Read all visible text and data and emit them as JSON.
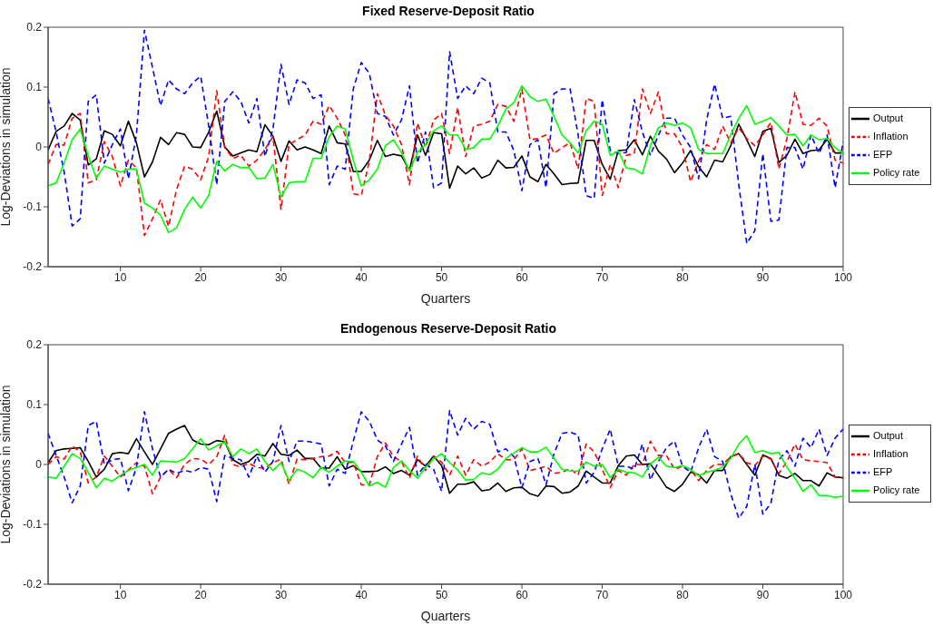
{
  "chart_data": [
    {
      "type": "line",
      "title": "Fixed Reserve-Deposit Ratio",
      "xlabel": "Quarters",
      "ylabel": "Log-Deviations in simulation",
      "x": [
        1,
        2,
        3,
        4,
        5,
        6,
        7,
        8,
        9,
        10,
        11,
        12,
        13,
        14,
        15,
        16,
        17,
        18,
        19,
        20,
        21,
        22,
        23,
        24,
        25,
        26,
        27,
        28,
        29,
        30,
        31,
        32,
        33,
        34,
        35,
        36,
        37,
        38,
        39,
        40,
        41,
        42,
        43,
        44,
        45,
        46,
        47,
        48,
        49,
        50,
        51,
        52,
        53,
        54,
        55,
        56,
        57,
        58,
        59,
        60,
        61,
        62,
        63,
        64,
        65,
        66,
        67,
        68,
        69,
        70,
        71,
        72,
        73,
        74,
        75,
        76,
        77,
        78,
        79,
        80,
        81,
        82,
        83,
        84,
        85,
        86,
        87,
        88,
        89,
        90,
        91,
        92,
        93,
        94,
        95,
        96,
        97,
        98,
        99,
        100
      ],
      "xlim": [
        1,
        100
      ],
      "xticks": [
        10,
        20,
        30,
        40,
        50,
        60,
        70,
        80,
        90,
        100
      ],
      "ylim": [
        -0.2,
        0.2
      ],
      "yticks": [
        -0.2,
        -0.1,
        0,
        0.1,
        0.2
      ],
      "legend": "right",
      "series": [
        {
          "name": "Output",
          "color": "#000000",
          "line_style": "solid",
          "values": [
            -0.005,
            0.026,
            0.035,
            0.056,
            0.045,
            -0.03,
            -0.02,
            0.027,
            0.021,
            0.002,
            0.043,
            0.007,
            -0.05,
            -0.025,
            0.016,
            0.004,
            0.024,
            0.021,
            0,
            -0.001,
            0.025,
            0.06,
            0,
            -0.015,
            -0.01,
            -0.005,
            -0.008,
            0.037,
            0.018,
            -0.024,
            0.01,
            -0.005,
            0,
            -0.005,
            -0.011,
            0.035,
            0.007,
            0.005,
            -0.041,
            -0.041,
            -0.022,
            0.011,
            -0.016,
            -0.012,
            -0.015,
            -0.039,
            0.02,
            -0.014,
            0.024,
            0.022,
            -0.069,
            -0.032,
            -0.045,
            -0.035,
            -0.052,
            -0.046,
            -0.022,
            -0.035,
            -0.034,
            -0.015,
            -0.05,
            -0.058,
            -0.029,
            -0.045,
            -0.063,
            -0.061,
            -0.06,
            0.011,
            0.011,
            -0.029,
            -0.054,
            -0.006,
            -0.005,
            0.012,
            -0.013,
            0.018,
            -0.007,
            -0.02,
            -0.043,
            -0.027,
            -0.006,
            -0.033,
            -0.05,
            -0.022,
            -0.025,
            0.002,
            0.038,
            0.012,
            -0.016,
            0.026,
            0.031,
            -0.026,
            -0.014,
            0.013,
            -0.011,
            -0.006,
            -0.005,
            0.013,
            -0.01,
            -0.01
          ]
        },
        {
          "name": "Inflation",
          "color": "#ff0000",
          "line_style": "dashed",
          "values": [
            -0.029,
            0.004,
            0.003,
            0.048,
            0.056,
            -0.06,
            -0.055,
            0.009,
            -0.016,
            -0.065,
            -0.022,
            -0.035,
            -0.148,
            -0.12,
            -0.088,
            -0.133,
            -0.071,
            -0.032,
            -0.037,
            -0.055,
            -0.016,
            0.094,
            -0.001,
            -0.019,
            -0.014,
            -0.032,
            -0.022,
            -0.004,
            0.017,
            -0.104,
            0.004,
            0.012,
            0.02,
            0.043,
            0.038,
            0.069,
            0.048,
            0.02,
            -0.078,
            -0.081,
            -0.024,
            0.089,
            0.053,
            0.035,
            0.004,
            -0.063,
            0.04,
            -0.001,
            0.045,
            0.056,
            -0.011,
            0.066,
            -0.016,
            0.035,
            0.038,
            0.043,
            0.071,
            0.068,
            0.043,
            0.097,
            0.012,
            0.014,
            0.02,
            -0.011,
            -0.001,
            0.007,
            -0.037,
            0.081,
            0.076,
            -0.081,
            -0.029,
            -0.068,
            -0.014,
            -0.011,
            0.097,
            0.056,
            0.092,
            0.022,
            0.022,
            -0.001,
            -0.058,
            -0.024,
            0.004,
            -0.004,
            0.035,
            0.007,
            0.032,
            0.014,
            0.002,
            0.02,
            0.041,
            -0.037,
            0.014,
            0.092,
            0.038,
            0.036,
            0.048,
            0.035,
            -0.022,
            -0.027
          ]
        },
        {
          "name": "EFP",
          "color": "#0000ff",
          "line_style": "dashed",
          "values": [
            0.081,
            0.025,
            -0.042,
            -0.132,
            -0.12,
            0.076,
            0.087,
            -0.027,
            0.004,
            0.03,
            -0.053,
            0.02,
            0.195,
            0.133,
            0.069,
            0.112,
            0.097,
            0.089,
            0.107,
            0.118,
            0.035,
            -0.063,
            0.076,
            0.092,
            0.076,
            0.04,
            0.081,
            -0.016,
            0.03,
            0.138,
            0.071,
            0.112,
            0.107,
            0.081,
            0.087,
            -0.063,
            -0.032,
            -0.037,
            0.097,
            0.141,
            0.123,
            0.056,
            0.051,
            0.02,
            0.045,
            0.102,
            -0.027,
            0.025,
            -0.068,
            -0.06,
            0.159,
            0.081,
            0.102,
            0.089,
            0.115,
            0.107,
            0.025,
            0.025,
            -0.006,
            -0.073,
            0.004,
            0.012,
            -0.068,
            0.089,
            0.097,
            0.097,
            0.02,
            -0.081,
            -0.086,
            0.079,
            -0.006,
            -0.011,
            -0.009,
            0.079,
            0.025,
            -0.014,
            0.02,
            0.048,
            0.048,
            0.02,
            -0.001,
            -0.053,
            0.045,
            0.105,
            0.048,
            0.051,
            -0.063,
            -0.161,
            -0.14,
            -0.011,
            -0.124,
            -0.122,
            -0.001,
            -0.001,
            -0.037,
            0.02,
            -0.011,
            0.02,
            -0.068,
            0.009
          ]
        },
        {
          "name": "Policy rate",
          "color": "#00ff00",
          "line_style": "solid",
          "values": [
            -0.065,
            -0.06,
            -0.027,
            0.012,
            0.03,
            -0.014,
            -0.052,
            -0.032,
            -0.037,
            -0.042,
            -0.037,
            -0.037,
            -0.094,
            -0.102,
            -0.114,
            -0.143,
            -0.135,
            -0.104,
            -0.084,
            -0.102,
            -0.081,
            -0.024,
            -0.04,
            -0.029,
            -0.035,
            -0.034,
            -0.053,
            -0.052,
            -0.029,
            -0.084,
            -0.06,
            -0.058,
            -0.058,
            -0.019,
            -0.019,
            0.017,
            0.035,
            0.03,
            -0.022,
            -0.065,
            -0.055,
            -0.037,
            0.002,
            0.012,
            -0.009,
            -0.04,
            -0.009,
            0.004,
            0.027,
            0.035,
            0.02,
            0.02,
            -0.004,
            -0.001,
            0.013,
            0.013,
            0.035,
            0.063,
            0.074,
            0.102,
            0.084,
            0.076,
            0.08,
            0.051,
            0.02,
            0.007,
            -0.01,
            0.027,
            0.043,
            0.038,
            -0.014,
            -0.007,
            -0.035,
            -0.037,
            -0.045,
            0.002,
            0.032,
            0.04,
            0.036,
            0.04,
            0.032,
            -0.004,
            -0.011,
            -0.011,
            -0.011,
            0.02,
            0.048,
            0.069,
            0.038,
            0.043,
            0.049,
            0.035,
            0.02,
            0.021,
            0.002,
            0.02,
            0.012,
            0.014,
            -0.001,
            -0.011
          ]
        }
      ]
    },
    {
      "type": "line",
      "title": "Endogenous Reserve-Deposit Ratio",
      "xlabel": "Quarters",
      "ylabel": "Log-Deviations in simulation",
      "x": [
        1,
        2,
        3,
        4,
        5,
        6,
        7,
        8,
        9,
        10,
        11,
        12,
        13,
        14,
        15,
        16,
        17,
        18,
        19,
        20,
        21,
        22,
        23,
        24,
        25,
        26,
        27,
        28,
        29,
        30,
        31,
        32,
        33,
        34,
        35,
        36,
        37,
        38,
        39,
        40,
        41,
        42,
        43,
        44,
        45,
        46,
        47,
        48,
        49,
        50,
        51,
        52,
        53,
        54,
        55,
        56,
        57,
        58,
        59,
        60,
        61,
        62,
        63,
        64,
        65,
        66,
        67,
        68,
        69,
        70,
        71,
        72,
        73,
        74,
        75,
        76,
        77,
        78,
        79,
        80,
        81,
        82,
        83,
        84,
        85,
        86,
        87,
        88,
        89,
        90,
        91,
        92,
        93,
        94,
        95,
        96,
        97,
        98,
        99,
        100
      ],
      "xlim": [
        1,
        100
      ],
      "xticks": [
        10,
        20,
        30,
        40,
        50,
        60,
        70,
        80,
        90,
        100
      ],
      "ylim": [
        -0.2,
        0.2
      ],
      "yticks": [
        -0.2,
        -0.1,
        0,
        0.1,
        0.2
      ],
      "legend": "right",
      "series": [
        {
          "name": "Output",
          "color": "#000000",
          "line_style": "solid",
          "values": [
            0.003,
            0.023,
            0.026,
            0.027,
            0.028,
            0.005,
            -0.021,
            -0.008,
            0.018,
            0.02,
            0.018,
            0.043,
            0.021,
            0,
            0.026,
            0.052,
            0.059,
            0.065,
            0.041,
            0.034,
            0.033,
            0.04,
            0.038,
            0.008,
            0,
            0.005,
            0.017,
            0.014,
            0.035,
            0.017,
            0.015,
            0.024,
            0.01,
            0.01,
            -0.006,
            -0.006,
            0.013,
            -0.008,
            -0.002,
            -0.012,
            -0.012,
            -0.011,
            -0.004,
            -0.015,
            -0.01,
            -0.018,
            0.008,
            -0.003,
            0.014,
            -0.002,
            -0.048,
            -0.033,
            -0.033,
            -0.029,
            -0.044,
            -0.042,
            -0.031,
            -0.045,
            -0.039,
            -0.038,
            -0.049,
            -0.053,
            -0.036,
            -0.037,
            -0.048,
            -0.046,
            -0.036,
            -0.011,
            -0.021,
            -0.031,
            -0.031,
            -0.002,
            0.014,
            0.016,
            0,
            0.001,
            -0.018,
            -0.038,
            -0.045,
            -0.033,
            -0.013,
            -0.017,
            -0.031,
            -0.01,
            -0.01,
            0.013,
            0.018,
            0,
            -0.018,
            0.016,
            0.01,
            -0.018,
            -0.023,
            -0.015,
            -0.027,
            -0.027,
            -0.036,
            -0.014,
            -0.021,
            -0.022
          ]
        },
        {
          "name": "Inflation",
          "color": "#ff0000",
          "line_style": "dashed",
          "values": [
            0,
            0.013,
            0.009,
            0.031,
            0.021,
            -0.031,
            -0.021,
            0.014,
            -0.003,
            -0.021,
            -0.009,
            0.003,
            -0.003,
            -0.049,
            -0.021,
            -0.008,
            -0.022,
            0,
            0.01,
            0.009,
            0,
            0.013,
            0.049,
            0,
            -0.004,
            0.002,
            -0.005,
            -0.006,
            0.003,
            0.009,
            -0.033,
            0.009,
            0.008,
            0.01,
            0.013,
            0.014,
            0.022,
            0.003,
            0.004,
            -0.034,
            -0.034,
            0.013,
            0.036,
            0.013,
            0.005,
            -0.023,
            0.014,
            -0.01,
            0.014,
            0.004,
            -0.018,
            0.014,
            -0.018,
            0.008,
            -0.003,
            0.004,
            0.018,
            0.008,
            0.008,
            0.026,
            -0.01,
            -0.007,
            -0.003,
            -0.015,
            -0.013,
            -0.007,
            -0.018,
            0.034,
            0.021,
            -0.008,
            -0.039,
            -0.01,
            -0.018,
            0,
            0,
            0.039,
            0.015,
            0.015,
            -0.008,
            -0.003,
            -0.008,
            -0.027,
            -0.01,
            0,
            0,
            0.013,
            0.018,
            0.003,
            -0.002,
            0.014,
            0.009,
            -0.015,
            0.005,
            0.034,
            0.008,
            0.006,
            0.005,
            0.003,
            -0.021,
            -0.023
          ]
        },
        {
          "name": "EFP",
          "color": "#0000ff",
          "line_style": "dashed",
          "values": [
            0.052,
            0.015,
            -0.021,
            -0.064,
            -0.036,
            0.065,
            0.072,
            0,
            0.008,
            0.01,
            -0.044,
            -0.005,
            0.088,
            0.026,
            -0.021,
            -0.008,
            -0.015,
            -0.01,
            -0.013,
            -0.005,
            -0.008,
            -0.062,
            0.015,
            0.01,
            0.008,
            -0.021,
            0.014,
            -0.013,
            0.005,
            0.065,
            0.005,
            0.039,
            0.039,
            0.037,
            0.034,
            -0.036,
            -0.008,
            -0.015,
            0.039,
            0.088,
            0.072,
            0.041,
            0.031,
            0.005,
            0.034,
            0.062,
            -0.018,
            0,
            -0.008,
            -0.045,
            0.09,
            0.049,
            0.077,
            0.059,
            0.072,
            0.067,
            0.021,
            0.026,
            0.013,
            -0.039,
            0.005,
            0.01,
            -0.034,
            0.018,
            0.052,
            0.054,
            0.049,
            -0.031,
            -0.013,
            0.026,
            0.059,
            -0.003,
            -0.003,
            -0.008,
            0.034,
            -0.026,
            0.005,
            0.028,
            0.039,
            -0.003,
            -0.013,
            0.028,
            0.059,
            0.013,
            0.005,
            -0.049,
            -0.09,
            -0.07,
            0,
            -0.083,
            -0.065,
            0.008,
            0.023,
            -0.003,
            0.044,
            0.028,
            0.059,
            0.015,
            0.044,
            0.059
          ]
        },
        {
          "name": "Policy rate",
          "color": "#00ff00",
          "line_style": "solid",
          "values": [
            -0.021,
            -0.023,
            -0.003,
            0.018,
            0.01,
            -0.013,
            -0.039,
            -0.023,
            -0.028,
            -0.018,
            -0.01,
            -0.005,
            0,
            -0.018,
            0.006,
            0.005,
            0.004,
            0.01,
            0.026,
            0.043,
            0.024,
            0.031,
            0.038,
            0.013,
            0.026,
            0.018,
            0.026,
            0.005,
            -0.01,
            0.003,
            -0.027,
            -0.008,
            -0.013,
            -0.022,
            -0.005,
            -0.013,
            -0.003,
            0.006,
            0.005,
            -0.013,
            -0.036,
            -0.03,
            -0.038,
            -0.005,
            0.006,
            -0.01,
            -0.023,
            -0.005,
            0.009,
            0.018,
            0.003,
            -0.009,
            -0.026,
            -0.025,
            -0.014,
            -0.017,
            -0.008,
            0.01,
            0.019,
            0.028,
            0.021,
            0.021,
            0.029,
            0.01,
            -0.008,
            -0.011,
            -0.011,
            0.004,
            -0.003,
            0,
            -0.022,
            -0.008,
            -0.013,
            -0.014,
            -0.021,
            0.001,
            0.012,
            -0.003,
            -0.005,
            -0.002,
            -0.008,
            -0.019,
            -0.013,
            -0.01,
            -0.004,
            0.01,
            0.034,
            0.048,
            0.02,
            0.023,
            0.018,
            0.02,
            -0.005,
            -0.023,
            -0.045,
            -0.034,
            -0.052,
            -0.052,
            -0.055,
            -0.053
          ]
        }
      ]
    }
  ]
}
